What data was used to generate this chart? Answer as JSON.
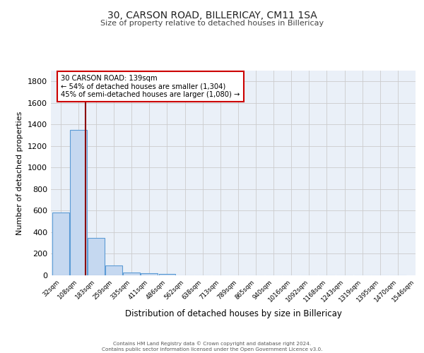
{
  "title1": "30, CARSON ROAD, BILLERICAY, CM11 1SA",
  "title2": "Size of property relative to detached houses in Billericay",
  "xlabel": "Distribution of detached houses by size in Billericay",
  "ylabel": "Number of detached properties",
  "bin_labels": [
    "32sqm",
    "108sqm",
    "183sqm",
    "259sqm",
    "335sqm",
    "411sqm",
    "486sqm",
    "562sqm",
    "638sqm",
    "713sqm",
    "789sqm",
    "865sqm",
    "940sqm",
    "1016sqm",
    "1092sqm",
    "1168sqm",
    "1243sqm",
    "1319sqm",
    "1395sqm",
    "1470sqm",
    "1546sqm"
  ],
  "bar_values": [
    585,
    1348,
    350,
    90,
    28,
    18,
    14,
    0,
    0,
    0,
    0,
    0,
    0,
    0,
    0,
    0,
    0,
    0,
    0,
    0
  ],
  "bar_color": "#c5d8f0",
  "bar_edge_color": "#5b9bd5",
  "annotation_text_line1": "30 CARSON ROAD: 139sqm",
  "annotation_text_line2": "← 54% of detached houses are smaller (1,304)",
  "annotation_text_line3": "45% of semi-detached houses are larger (1,080) →",
  "annotation_box_color": "#ffffff",
  "annotation_box_edge": "#cc0000",
  "red_line_color": "#8b0000",
  "ylim": [
    0,
    1900
  ],
  "yticks": [
    0,
    200,
    400,
    600,
    800,
    1000,
    1200,
    1400,
    1600,
    1800
  ],
  "grid_color": "#cccccc",
  "bg_color": "#eaf0f8",
  "footer_line1": "Contains HM Land Registry data © Crown copyright and database right 2024.",
  "footer_line2": "Contains public sector information licensed under the Open Government Licence v3.0."
}
